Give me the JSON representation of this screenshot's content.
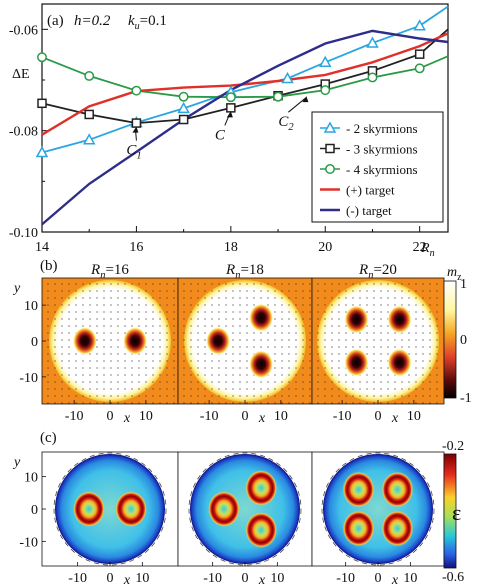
{
  "chart_data": [
    {
      "type": "line",
      "panel_label": "(a)",
      "annotation_h": "h=0.2",
      "annotation_k": "k",
      "annotation_k_sub": "u",
      "annotation_k_val": "=0.1",
      "ylabel": "ΔE",
      "xlabel": "R",
      "xlabel_sub": "n",
      "xlim": [
        14,
        22.6
      ],
      "ylim": [
        -0.1,
        -0.055
      ],
      "xticks": [
        "14",
        "16",
        "18",
        "20",
        "22"
      ],
      "yticks": [
        "-0.06",
        "-0.08",
        "-0.10"
      ],
      "point_labels": [
        {
          "text": "C",
          "sub": "1",
          "x": 16,
          "y": -0.0788
        },
        {
          "text": "C",
          "x": 18,
          "y": -0.0758
        },
        {
          "text": "C",
          "sub": "2",
          "x": 19.6,
          "y": -0.0728
        }
      ],
      "series": [
        {
          "name": "- 2 skyrmions",
          "color": "#2aa6e0",
          "marker": "triangle",
          "x": [
            14,
            15,
            16,
            17,
            18,
            19.2,
            20,
            21,
            22,
            22.6
          ],
          "y": [
            -0.0843,
            -0.0818,
            -0.0784,
            -0.0756,
            -0.0724,
            -0.0697,
            -0.0665,
            -0.0627,
            -0.0593,
            -0.0555
          ]
        },
        {
          "name": "- 3 skyrmions",
          "color": "#222222",
          "marker": "square",
          "x": [
            14,
            15,
            16,
            17,
            18,
            19,
            20,
            21,
            22,
            22.6
          ],
          "y": [
            -0.0746,
            -0.0768,
            -0.0785,
            -0.0778,
            -0.0755,
            -0.0731,
            -0.0708,
            -0.0682,
            -0.0649,
            -0.06
          ]
        },
        {
          "name": "- 4 skyrmions",
          "color": "#2a9a46",
          "marker": "circle",
          "x": [
            14,
            15,
            16,
            17,
            18,
            19,
            20,
            21,
            22,
            22.6
          ],
          "y": [
            -0.0655,
            -0.0692,
            -0.0721,
            -0.0733,
            -0.0734,
            -0.0733,
            -0.072,
            -0.0695,
            -0.0677,
            -0.0653
          ]
        },
        {
          "name": "(+)  target",
          "color": "#e0302a",
          "marker": "none",
          "x": [
            14,
            15,
            16,
            17,
            18,
            19,
            20,
            21,
            22,
            22.6
          ],
          "y": [
            -0.0808,
            -0.0752,
            -0.0722,
            -0.0715,
            -0.0711,
            -0.0702,
            -0.069,
            -0.0665,
            -0.0633,
            -0.0608
          ]
        },
        {
          "name": "(-)  target",
          "color": "#2e2d8a",
          "marker": "none",
          "x": [
            14,
            15,
            16,
            17,
            18,
            19,
            20,
            21,
            22,
            22.6
          ],
          "y": [
            -0.0985,
            -0.0905,
            -0.0842,
            -0.0778,
            -0.072,
            -0.0672,
            -0.0628,
            -0.0603,
            -0.0618,
            -0.0625
          ]
        }
      ]
    },
    {
      "type": "heatmap",
      "panel_label": "(b)",
      "ylabel": "y",
      "xlabel": "x",
      "colorbar_label": "m",
      "colorbar_sub": "z",
      "colorbar_ticks": [
        "1",
        "0",
        "-1"
      ],
      "axis_ticks_x": [
        "-10",
        "0",
        "10"
      ],
      "axis_ticks_y": [
        "10",
        "0",
        "-10"
      ],
      "panels": [
        {
          "title_R": "R",
          "title_sub": "n",
          "title_val": "=16",
          "skyrmions": [
            [
              -7,
              0
            ],
            [
              7,
              0
            ]
          ]
        },
        {
          "title_R": "R",
          "title_sub": "n",
          "title_val": "=18",
          "skyrmions": [
            [
              -7.5,
              0
            ],
            [
              4.5,
              6.5
            ],
            [
              4.5,
              -6.5
            ]
          ]
        },
        {
          "title_R": "R",
          "title_sub": "n",
          "title_val": "=20",
          "skyrmions": [
            [
              -6,
              6
            ],
            [
              6,
              6
            ],
            [
              -6,
              -6
            ],
            [
              6,
              -6
            ]
          ]
        }
      ]
    },
    {
      "type": "heatmap",
      "panel_label": "(c)",
      "ylabel": "y",
      "xlabel": "x",
      "colorbar_label": "ε",
      "colorbar_ticks": [
        "-0.2",
        "-0.6"
      ],
      "axis_ticks_x": [
        "-10",
        "0",
        "10"
      ],
      "axis_ticks_y": [
        "10",
        "0",
        "-10"
      ],
      "panels": [
        {
          "skyrmions": [
            [
              -6.5,
              0
            ],
            [
              6.5,
              0
            ]
          ]
        },
        {
          "skyrmions": [
            [
              -6.5,
              0
            ],
            [
              5,
              6.5
            ],
            [
              5,
              -6.5
            ]
          ]
        },
        {
          "skyrmions": [
            [
              -6,
              6
            ],
            [
              6,
              6
            ],
            [
              -6,
              -6
            ],
            [
              6,
              -6
            ]
          ]
        }
      ]
    }
  ]
}
